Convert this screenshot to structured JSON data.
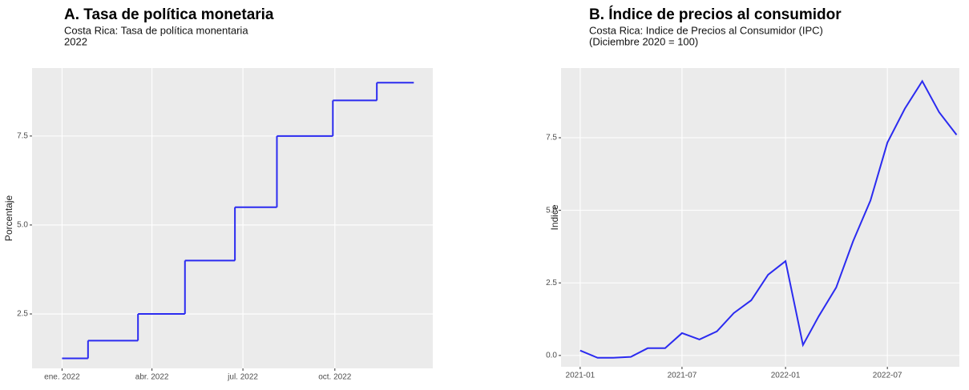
{
  "chart_data": [
    {
      "type": "step",
      "title": "A. Tasa de política monetaria",
      "subtitle": [
        "Costa Rica: Tasa de política monentaria",
        "2022"
      ],
      "y_label": "Porcentaje",
      "color": "#2b2bf0",
      "grid": true,
      "x": [
        "2022-01-01",
        "2022-01-27",
        "2022-03-18",
        "2022-05-04",
        "2022-06-23",
        "2022-08-04",
        "2022-09-29",
        "2022-11-12",
        "2022-12-19"
      ],
      "values": [
        1.25,
        1.75,
        2.5,
        4,
        5.5,
        7.5,
        8.5,
        9,
        9
      ],
      "xlim": [
        "2021-12-02",
        "2023-01-07"
      ],
      "xticks": [
        {
          "value": "2022-01-01",
          "label": "ene. 2022"
        },
        {
          "value": "2022-04-01",
          "label": "abr. 2022"
        },
        {
          "value": "2022-07-01",
          "label": "jul. 2022"
        },
        {
          "value": "2022-10-01",
          "label": "oct. 2022"
        }
      ],
      "ylim": [
        0.97,
        9.41
      ],
      "yticks": [
        2.5,
        {
          "value": 5,
          "label": "5.0"
        },
        7.5
      ]
    },
    {
      "type": "line",
      "title": "B. Índice de precios al consumidor",
      "subtitle": [
        "Costa Rica: Indice de Precios al Consumidor (IPC)",
        "(Diciembre 2020 = 100)"
      ],
      "y_label": "Indice",
      "color": "#2b2bf0",
      "grid": true,
      "x": [
        "2021-01",
        "2021-02",
        "2021-03",
        "2021-04",
        "2021-05",
        "2021-06",
        "2021-07",
        "2021-08",
        "2021-09",
        "2021-10",
        "2021-11",
        "2021-12",
        "2022-01",
        "2022-02",
        "2022-03",
        "2022-04",
        "2022-05",
        "2022-06",
        "2022-07",
        "2022-08",
        "2022-09",
        "2022-10",
        "2022-11"
      ],
      "values": [
        0.17,
        -0.08,
        -0.08,
        -0.05,
        0.25,
        0.25,
        0.77,
        0.55,
        0.83,
        1.46,
        1.9,
        2.78,
        3.25,
        0.36,
        1.35,
        2.34,
        3.93,
        5.34,
        7.33,
        8.5,
        9.45,
        8.38,
        7.6
      ],
      "xlim": [
        "2020-11-28",
        "2022-11-06"
      ],
      "xticks": [
        {
          "value": "2021-01-01",
          "label": "2021-01"
        },
        {
          "value": "2021-07-01",
          "label": "2021-07"
        },
        {
          "value": "2022-01-01",
          "label": "2022-01"
        },
        {
          "value": "2022-07-01",
          "label": "2022-07"
        }
      ],
      "ylim": [
        -0.39,
        9.9
      ],
      "yticks": [
        {
          "value": 0,
          "label": "0.0"
        },
        2.5,
        {
          "value": 5,
          "label": "5.0"
        },
        7.5
      ]
    }
  ]
}
